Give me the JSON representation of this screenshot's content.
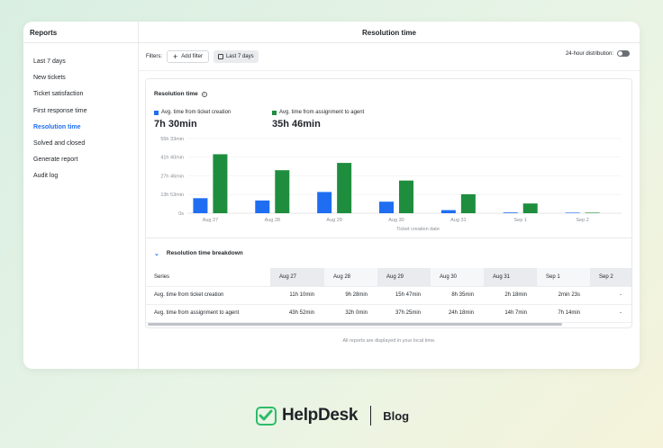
{
  "sidebar": {
    "title": "Reports",
    "items": [
      {
        "label": "Last 7 days",
        "active": false
      },
      {
        "label": "New tickets",
        "active": false
      },
      {
        "label": "Ticket satisfaction",
        "active": false
      },
      {
        "label": "First response time",
        "active": false
      },
      {
        "label": "Resolution time",
        "active": true
      },
      {
        "label": "Solved and closed",
        "active": false
      },
      {
        "label": "Generate report",
        "active": false
      },
      {
        "label": "Audit log",
        "active": false
      }
    ]
  },
  "header": {
    "title": "Resolution time"
  },
  "filters": {
    "label": "Filters:",
    "add_filter": "Add filter",
    "date_range": "Last 7 days",
    "distribution_label": "24-hour distribution:"
  },
  "chart": {
    "title": "Resolution time",
    "metrics": [
      {
        "label": "Avg. time from ticket creation",
        "value": "7h 30min",
        "color": "#1f6ef2"
      },
      {
        "label": "Avg. time from assignment to agent",
        "value": "35h 46min",
        "color": "#1e8e3e"
      }
    ]
  },
  "chart_data": {
    "type": "bar",
    "categories": [
      "Aug 27",
      "Aug 28",
      "Aug 29",
      "Aug 30",
      "Aug 31",
      "Sep 1",
      "Sep 2"
    ],
    "series": [
      {
        "name": "Avg. time from ticket creation",
        "color": "#1f6ef2",
        "values_hours": [
          11.17,
          9.47,
          15.78,
          8.58,
          2.3,
          0.04,
          0
        ]
      },
      {
        "name": "Avg. time from assignment to agent",
        "color": "#1e8e3e",
        "values_hours": [
          43.87,
          32.0,
          37.42,
          24.3,
          14.12,
          7.23,
          0
        ]
      }
    ],
    "y_ticks": [
      "0s",
      "13h 53min",
      "27h 46min",
      "41h 40min",
      "55h 33min"
    ],
    "y_tick_hours": [
      0,
      13.89,
      27.77,
      41.67,
      55.55
    ],
    "ylim_hours": [
      0,
      55.55
    ],
    "xlabel": "Ticket creation date",
    "grid": true
  },
  "breakdown": {
    "title": "Resolution time breakdown",
    "series_header": "Series",
    "columns": [
      "Aug 27",
      "Aug 28",
      "Aug 29",
      "Aug 30",
      "Aug 31",
      "Sep 1",
      "Sep 2"
    ],
    "rows": [
      {
        "series": "Avg. time from ticket creation",
        "values": [
          "11h 10min",
          "9h 28min",
          "15h 47min",
          "8h 35min",
          "2h 18min",
          "2min 23s",
          "-"
        ]
      },
      {
        "series": "Avg. time from assignment to agent",
        "values": [
          "43h 52min",
          "32h 0min",
          "37h 25min",
          "24h 18min",
          "14h 7min",
          "7h 14min",
          "-"
        ]
      }
    ]
  },
  "footnote": "All reports are displayed in your local time.",
  "brand": {
    "name": "HelpDesk",
    "section": "Blog",
    "color": "#2ebc6a"
  }
}
